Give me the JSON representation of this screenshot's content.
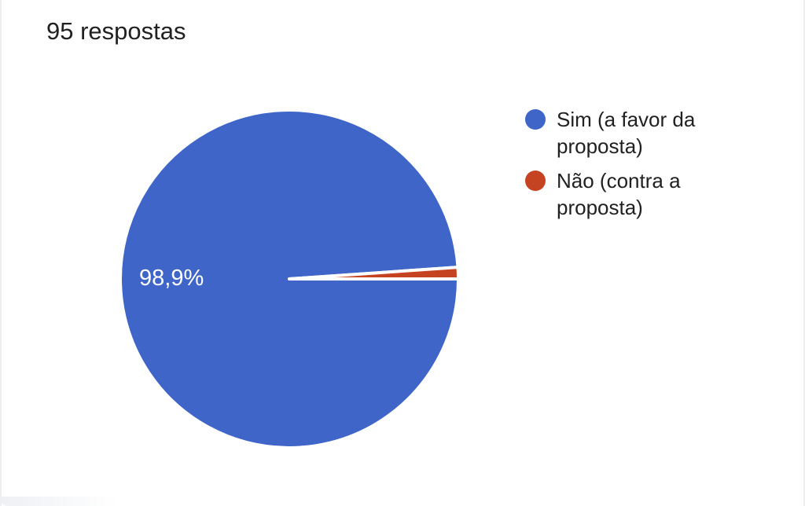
{
  "card": {
    "background": "#ffffff",
    "edge_color": "#ededf2"
  },
  "chart_data": {
    "type": "pie",
    "title": "95 respostas",
    "total_responses": 95,
    "start_angle_deg": 0,
    "direction": "clockwise",
    "legend_position": "right",
    "slice_border_color": "#ffffff",
    "text_color": "#212121",
    "slice_label_color": "#ffffff",
    "slices": [
      {
        "label": "Sim (a favor da proposta)",
        "percent": 98.9,
        "percent_label": "98,9%",
        "color": "#3E65C7"
      },
      {
        "label": "Não (contra a proposta)",
        "percent": 1.1,
        "percent_label": "",
        "color": "#C64321"
      }
    ]
  }
}
